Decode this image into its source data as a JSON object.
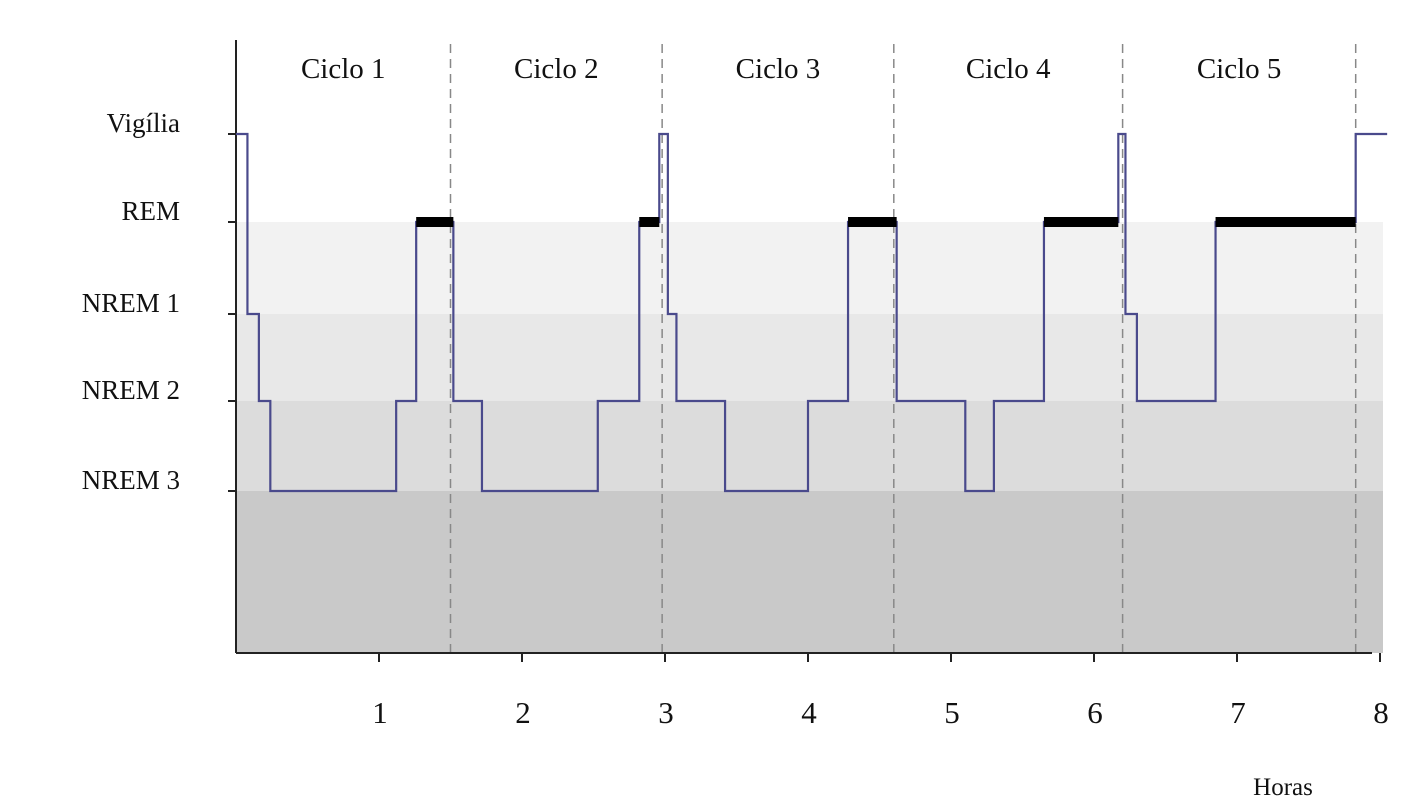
{
  "chart_data": {
    "type": "line",
    "xlabel": "Horas",
    "x_ticks": [
      1,
      2,
      3,
      4,
      5,
      6,
      7,
      8
    ],
    "xlim": [
      0,
      8.1
    ],
    "stages": [
      "Vigília",
      "REM",
      "NREM 1",
      "NREM 2",
      "NREM 3"
    ],
    "cycles": [
      {
        "label": "Ciclo 1",
        "end": 1.5
      },
      {
        "label": "Ciclo 2",
        "end": 2.98
      },
      {
        "label": "Ciclo 3",
        "end": 4.6
      },
      {
        "label": "Ciclo 4",
        "end": 6.2
      },
      {
        "label": "Ciclo 5",
        "end": 7.83
      }
    ],
    "series": [
      {
        "values": [
          [
            0,
            "Vigília"
          ],
          [
            0.08,
            "NREM 1"
          ],
          [
            0.16,
            "NREM 2"
          ],
          [
            0.24,
            "NREM 3"
          ],
          [
            1.12,
            "NREM 2"
          ],
          [
            1.26,
            "REM"
          ],
          [
            1.52,
            "NREM 2"
          ],
          [
            1.72,
            "NREM 3"
          ],
          [
            2.53,
            "NREM 2"
          ],
          [
            2.82,
            "REM"
          ],
          [
            2.96,
            "Vigília"
          ],
          [
            3.02,
            "NREM 1"
          ],
          [
            3.08,
            "NREM 2"
          ],
          [
            3.42,
            "NREM 3"
          ],
          [
            4.0,
            "NREM 2"
          ],
          [
            4.28,
            "REM"
          ],
          [
            4.62,
            "NREM 2"
          ],
          [
            5.1,
            "NREM 3"
          ],
          [
            5.3,
            "NREM 2"
          ],
          [
            5.65,
            "REM"
          ],
          [
            6.17,
            "Vigília"
          ],
          [
            6.22,
            "NREM 1"
          ],
          [
            6.3,
            "NREM 2"
          ],
          [
            6.85,
            "REM"
          ],
          [
            7.83,
            "Vigília"
          ],
          [
            8.05,
            "Vigília"
          ]
        ]
      }
    ],
    "rem_periods": [
      [
        1.26,
        1.52
      ],
      [
        2.82,
        2.96
      ],
      [
        4.28,
        4.62
      ],
      [
        5.65,
        6.17
      ],
      [
        6.85,
        7.83
      ]
    ],
    "colors": {
      "hypnogram_line": "#4a4a8c",
      "rem_bar": "#000000",
      "band_rem": "#f2f2f2",
      "band_nrem1": "#e8e8e8",
      "band_nrem2": "#dcdcdc",
      "band_nrem3": "#c9c9c9",
      "axis": "#222222",
      "divider": "#888888"
    }
  }
}
